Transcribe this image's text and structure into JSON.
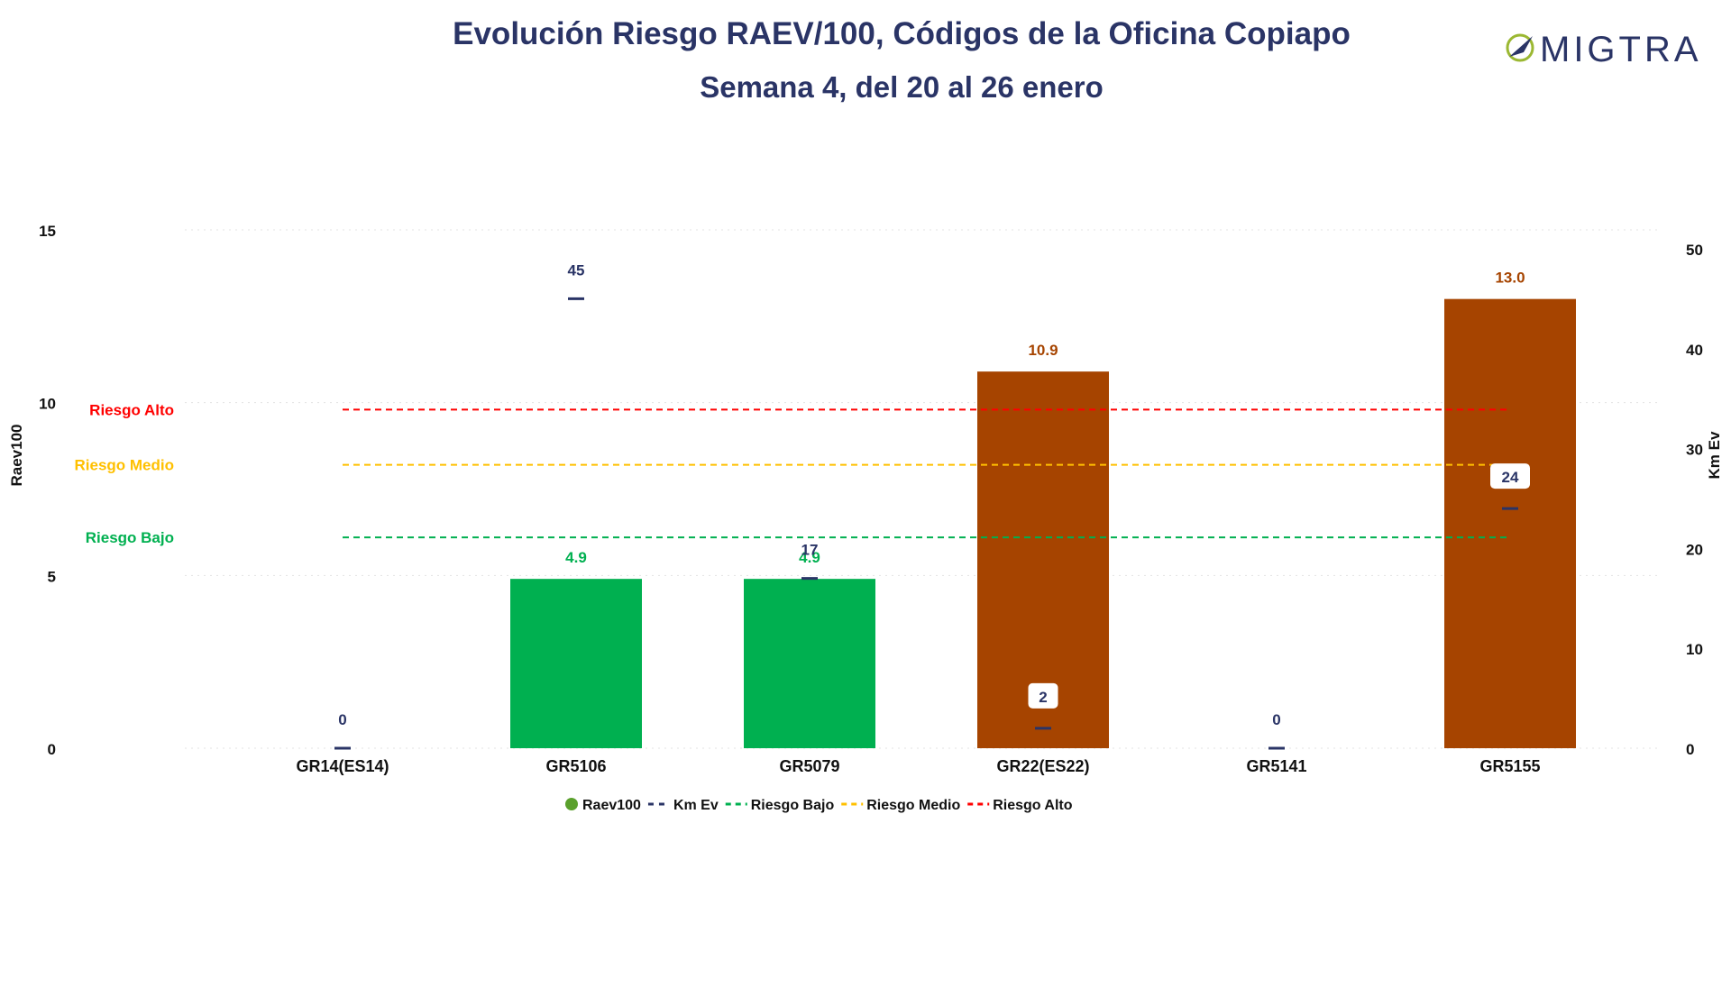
{
  "title": "Evolución Riesgo RAEV/100, Códigos de la Oficina Copiapo",
  "subtitle": "Semana 4, del 20 al 26 enero",
  "logo": {
    "text": "MIGTRA",
    "icon": "compass-arrow-icon"
  },
  "colors": {
    "title": "#2a3466",
    "low": "#00b050",
    "high": "#a64400",
    "km": "#2a3466",
    "riesgo_bajo": "#00b050",
    "riesgo_medio": "#ffc000",
    "riesgo_alto": "#ff0000",
    "legend_raev": "#5aa02c"
  },
  "chart_data": {
    "type": "bar",
    "categories": [
      "GR14(ES14)",
      "GR5106",
      "GR5079",
      "GR22(ES22)",
      "GR5141",
      "GR5155"
    ],
    "series": [
      {
        "name": "Raev100",
        "axis": "left",
        "kind": "bar",
        "values": [
          0,
          4.9,
          4.9,
          10.9,
          0,
          13.0
        ],
        "labels": [
          "",
          "4.9",
          "4.9",
          "10.9",
          "",
          "13.0"
        ]
      },
      {
        "name": "Km Ev",
        "axis": "right",
        "kind": "marker",
        "values": [
          0,
          45,
          17,
          2,
          0,
          24
        ],
        "labels": [
          "0",
          "45",
          "17",
          "2",
          "0",
          "24"
        ]
      }
    ],
    "thresholds": [
      {
        "name": "Riesgo Bajo",
        "value": 6.1
      },
      {
        "name": "Riesgo Medio",
        "value": 8.2
      },
      {
        "name": "Riesgo Alto",
        "value": 9.8
      }
    ],
    "ylabel": "Raev100",
    "ylabel_right": "Km Ev",
    "ylim": [
      0,
      15
    ],
    "yticks": [
      "0",
      "5",
      "10",
      "15"
    ],
    "ylim_right": [
      0,
      50
    ],
    "yticks_right": [
      "0",
      "10",
      "20",
      "30",
      "40",
      "50"
    ],
    "grid": true,
    "legend_position": "bottom",
    "legend": [
      "Raev100",
      "Km Ev",
      "Riesgo Bajo",
      "Riesgo Medio",
      "Riesgo Alto"
    ]
  }
}
